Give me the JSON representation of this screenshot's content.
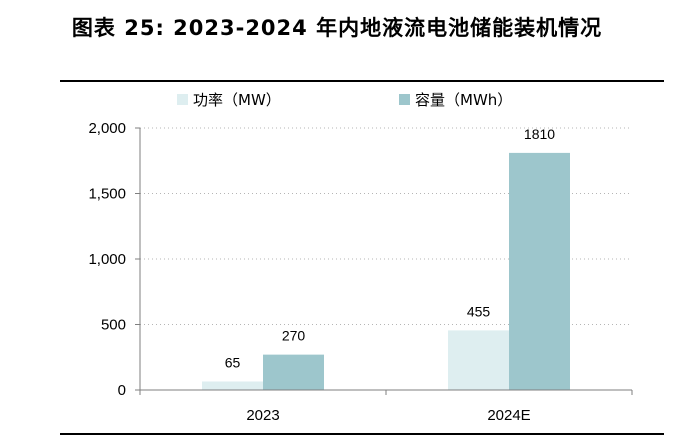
{
  "title": "图表 25: 2023-2024 年内地液流电池储能装机情况",
  "chart_data": {
    "type": "bar",
    "title": "图表 25: 2023-2024 年内地液流电池储能装机情况",
    "categories": [
      "2023",
      "2024E"
    ],
    "series": [
      {
        "name": "功率（MW）",
        "values": [
          65,
          455
        ],
        "color": "#deeef0"
      },
      {
        "name": "容量（MWh）",
        "values": [
          270,
          1810
        ],
        "color": "#9dc6cc"
      }
    ],
    "ylim": [
      0,
      2000
    ],
    "yticks": [
      0,
      500,
      1000,
      1500,
      2000
    ],
    "ytick_labels": [
      "0",
      "500",
      "1,000",
      "1,500",
      "2,000"
    ],
    "legend_position": "top-center",
    "grid": "dotted-horizontal"
  }
}
